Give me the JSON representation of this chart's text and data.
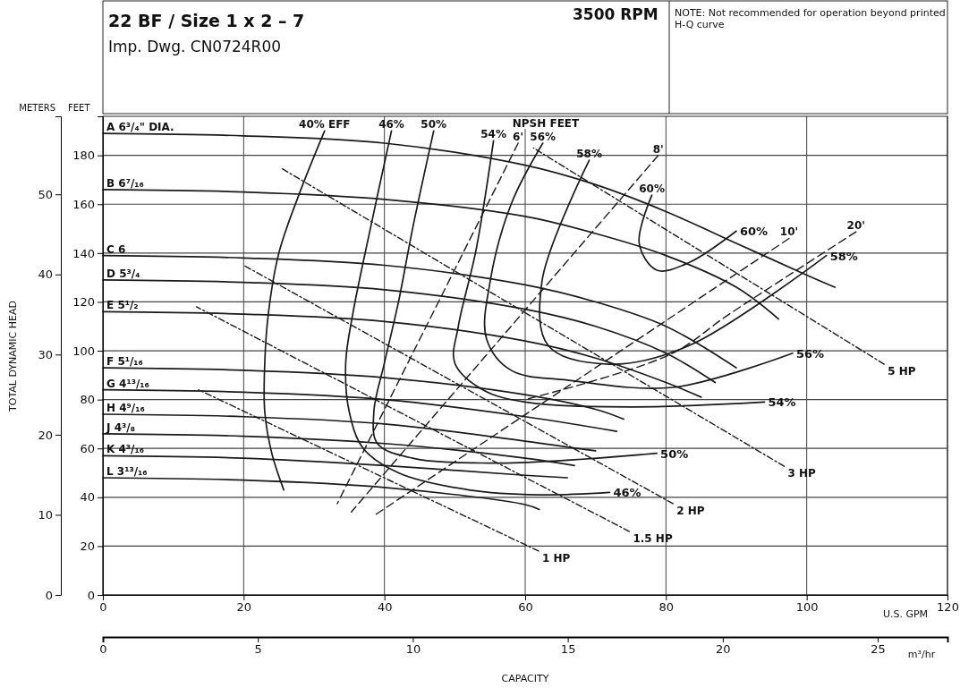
{
  "chart_data": {
    "type": "line",
    "title": "22 BF / Size  1 x 2 – 7",
    "subtitle": "Imp. Dwg. CN0724R00",
    "xlabel": "U.S. GPM",
    "ylabel": "FEET",
    "y2label": "METERS",
    "x2label": "m³/hr",
    "annotations": [
      "3500 RPM",
      "NOTE: Not recommended for operation beyond printed H-Q curve",
      "NPSH FEET",
      "CAPACITY",
      "TOTAL DYNAMIC HEAD",
      {
        "text": "60%",
        "x": 90,
        "y": 149
      },
      {
        "text": "58%",
        "x": 102.8,
        "y": 139
      },
      {
        "text": "56%",
        "x": 98,
        "y": 99
      },
      {
        "text": "54%",
        "x": 94,
        "y": 79
      },
      {
        "text": "50%",
        "x": 78.7,
        "y": 58
      },
      {
        "text": "46%",
        "x": 72,
        "y": 42
      }
    ],
    "xlim": [
      0,
      120
    ],
    "xticks": [
      0,
      20,
      40,
      60,
      80,
      100,
      {
        "value": 120,
        "label": "120"
      }
    ],
    "ylim": [
      0,
      196
    ],
    "yticks": [
      0,
      20,
      40,
      60,
      80,
      100,
      120,
      140,
      160,
      180
    ],
    "y2lim": [
      0,
      59.74
    ],
    "y2ticks": [
      0,
      10,
      20,
      30,
      40,
      50
    ],
    "x2lim": [
      0,
      27.25
    ],
    "x2ticks": [
      0,
      5,
      10,
      15,
      20,
      25
    ],
    "grid": true,
    "marker": "none",
    "series": [
      {
        "name": "A 6³/₄\" DIA.",
        "color": "#1a1a1a",
        "line_style": "solid",
        "x": [
          0,
          20,
          40,
          60,
          70,
          80,
          90,
          100,
          104
        ],
        "values": [
          189,
          188,
          185,
          176,
          168,
          157,
          144,
          131,
          126
        ]
      },
      {
        "name": "B 6⁷/₁₆",
        "color": "#1a1a1a",
        "line_style": "solid",
        "x": [
          0,
          20,
          40,
          60,
          70,
          80,
          90,
          96
        ],
        "values": [
          166,
          165,
          162,
          155,
          148,
          139,
          126,
          113
        ]
      },
      {
        "name": "C 6",
        "color": "#1a1a1a",
        "line_style": "solid",
        "x": [
          0,
          20,
          40,
          60,
          70,
          80,
          90
        ],
        "values": [
          139,
          138,
          135,
          127,
          120,
          110,
          93
        ]
      },
      {
        "name": "D 5³/₄",
        "color": "#1a1a1a",
        "line_style": "solid",
        "x": [
          0,
          20,
          40,
          60,
          70,
          80,
          87
        ],
        "values": [
          129,
          128,
          125,
          117,
          110,
          99,
          87
        ]
      },
      {
        "name": "E 5¹/₂",
        "color": "#1a1a1a",
        "line_style": "solid",
        "x": [
          0,
          20,
          40,
          60,
          70,
          80,
          85
        ],
        "values": [
          116,
          115,
          112,
          104,
          97,
          87,
          81
        ]
      },
      {
        "name": "F 5¹/₁₆",
        "color": "#1a1a1a",
        "line_style": "solid",
        "x": [
          0,
          20,
          40,
          60,
          70,
          74
        ],
        "values": [
          93,
          92,
          89,
          82,
          76,
          72
        ]
      },
      {
        "name": "G 4¹³/₁₆",
        "color": "#1a1a1a",
        "line_style": "solid",
        "x": [
          0,
          20,
          40,
          60,
          73
        ],
        "values": [
          84,
          83,
          80,
          73,
          67
        ]
      },
      {
        "name": "H 4⁹/₁₆",
        "color": "#1a1a1a",
        "line_style": "solid",
        "x": [
          0,
          20,
          40,
          60,
          70
        ],
        "values": [
          74,
          73,
          70,
          63,
          59
        ]
      },
      {
        "name": "J 4³/₈",
        "color": "#1a1a1a",
        "line_style": "solid",
        "x": [
          0,
          20,
          40,
          60,
          67
        ],
        "values": [
          66,
          65,
          62,
          56,
          53
        ]
      },
      {
        "name": "K 4³/₁₆",
        "color": "#1a1a1a",
        "line_style": "solid",
        "x": [
          0,
          20,
          40,
          60,
          66
        ],
        "values": [
          57,
          56,
          53,
          49,
          48
        ]
      },
      {
        "name": "L 3¹³/₁₆",
        "color": "#1a1a1a",
        "line_style": "solid",
        "x": [
          0,
          20,
          40,
          60,
          62
        ],
        "values": [
          48,
          47,
          44,
          37,
          35
        ]
      },
      {
        "name": "40% EFF",
        "color": "#1a1a1a",
        "line_style": "solid",
        "x": [
          31.5,
          28,
          25,
          23.5,
          23,
          23,
          24,
          25.7
        ],
        "values": [
          190,
          165,
          140,
          115,
          95,
          75,
          58,
          43
        ]
      },
      {
        "name": "46%",
        "color": "#1a1a1a",
        "line_style": "solid",
        "x": [
          41,
          38,
          35.5,
          34.5,
          35,
          37,
          42,
          52,
          62,
          72
        ],
        "values": [
          190,
          150,
          115,
          95,
          75,
          60,
          50,
          43,
          41,
          42
        ]
      },
      {
        "name": "50%",
        "color": "#1a1a1a",
        "line_style": "solid",
        "x": [
          47,
          44,
          42,
          40,
          38.5,
          39,
          44,
          55,
          65,
          78.7
        ],
        "values": [
          190,
          150,
          120,
          95,
          75,
          62,
          56,
          54,
          55,
          58
        ]
      },
      {
        "name": "54%",
        "color": "#1a1a1a",
        "line_style": "solid",
        "x": [
          55.5,
          53,
          50.5,
          50,
          54,
          60,
          75,
          94
        ],
        "values": [
          186,
          141,
          110,
          95,
          84,
          79,
          77,
          79
        ]
      },
      {
        "name": "56%",
        "color": "#1a1a1a",
        "line_style": "solid",
        "x": [
          62.5,
          58,
          55,
          54.5,
          58,
          66,
          81,
          98
        ],
        "values": [
          185,
          160,
          128,
          105,
          92,
          88,
          85,
          99
        ]
      },
      {
        "name": "58%",
        "color": "#1a1a1a",
        "line_style": "solid",
        "x": [
          69.1,
          62.4,
          63.3,
          71.9,
          83.2,
          102.8
        ],
        "values": [
          178,
          128.6,
          102,
          94.5,
          102,
          139
        ]
      },
      {
        "name": "60%",
        "color": "#1a1a1a",
        "line_style": "solid",
        "x": [
          78,
          76.2,
          78.7,
          83.2,
          90
        ],
        "values": [
          163.7,
          144,
          133,
          136,
          149
        ]
      },
      {
        "name": "6'",
        "color": "#1a1a1a",
        "line_style": "dashed",
        "x": [
          59,
          33.3
        ],
        "values": [
          185,
          37.4
        ]
      },
      {
        "name": "8'",
        "color": "#1a1a1a",
        "line_style": "dashed",
        "x": [
          78.9,
          35.3
        ],
        "values": [
          180,
          34
        ]
      },
      {
        "name": "10'",
        "color": "#1a1a1a",
        "line_style": "dashed",
        "x": [
          97.5,
          38.8
        ],
        "values": [
          146,
          33
        ]
      },
      {
        "name": "20'",
        "color": "#1a1a1a",
        "line_style": "dashed",
        "x": [
          107,
          89,
          80.6,
          60
        ],
        "values": [
          148.7,
          115,
          98.5,
          80
        ]
      },
      {
        "name": "1 HP",
        "color": "#1a1a1a",
        "line_style": "dotted",
        "x": [
          61.9,
          13.6
        ],
        "values": [
          18,
          84
        ]
      },
      {
        "name": "1.5 HP",
        "color": "#1a1a1a",
        "line_style": "dotted",
        "x": [
          74.8,
          13.3
        ],
        "values": [
          26,
          118
        ]
      },
      {
        "name": "2 HP",
        "color": "#1a1a1a",
        "line_style": "dotted",
        "x": [
          81,
          20
        ],
        "values": [
          37.4,
          135
        ]
      },
      {
        "name": "3 HP",
        "color": "#1a1a1a",
        "line_style": "dotted",
        "x": [
          96.8,
          25.2
        ],
        "values": [
          52.7,
          175
        ]
      },
      {
        "name": "5 HP",
        "color": "#1a1a1a",
        "line_style": "dotted",
        "x": [
          111,
          61.2
        ],
        "values": [
          94.5,
          183
        ]
      }
    ]
  }
}
